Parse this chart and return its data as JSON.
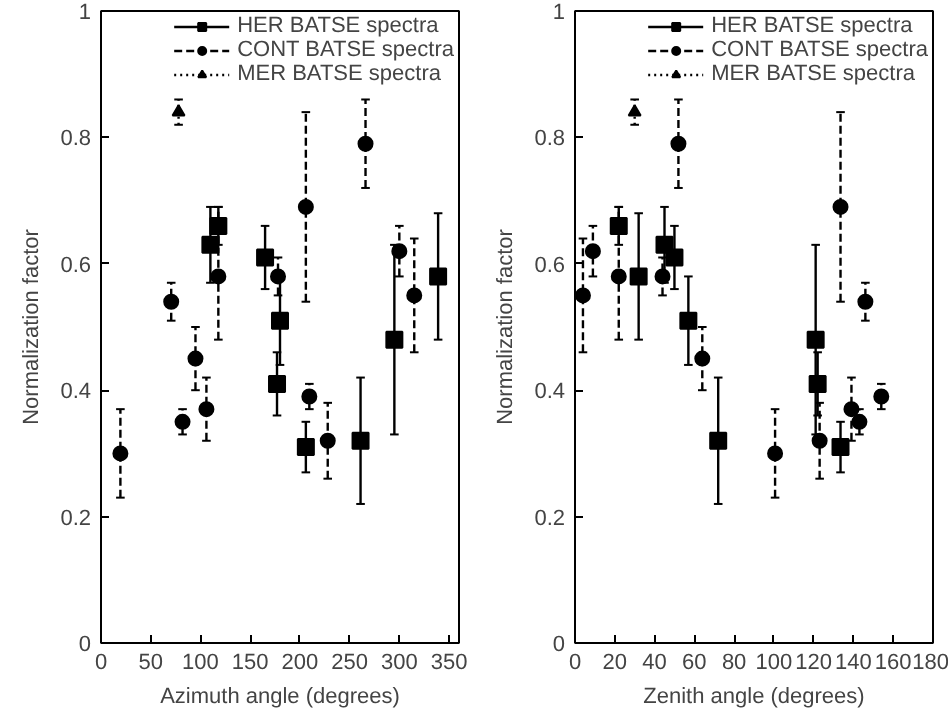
{
  "chart_data": [
    {
      "type": "scatter",
      "xlabel": "Azimuth angle (degrees)",
      "ylabel": "Normalization factor",
      "xlim": [
        0,
        360
      ],
      "xticks": [
        0,
        50,
        100,
        150,
        200,
        250,
        300,
        350
      ],
      "ylim": [
        0,
        1
      ],
      "yticks": [
        0,
        0.2,
        0.4,
        0.6,
        0.8,
        1
      ],
      "grid": false,
      "legend": "top right",
      "series": [
        {
          "name": "HER BATSE spectra",
          "color": "#000000",
          "marker": "square",
          "line_style": "solid",
          "x": [
            110,
            118,
            165,
            180,
            177,
            206,
            261,
            295,
            339
          ],
          "values": [
            0.63,
            0.66,
            0.61,
            0.51,
            0.41,
            0.31,
            0.32,
            0.48,
            0.58
          ],
          "errors": [
            [
              0.57,
              0.69
            ],
            [
              0.63,
              0.69
            ],
            [
              0.56,
              0.66
            ],
            [
              0.44,
              0.58
            ],
            [
              0.36,
              0.46
            ],
            [
              0.27,
              0.35
            ],
            [
              0.22,
              0.42
            ],
            [
              0.33,
              0.63
            ],
            [
              0.48,
              0.68
            ]
          ]
        },
        {
          "name": "CONT BATSE spectra",
          "color": "#000000",
          "marker": "circle",
          "line_style": "dashed",
          "x": [
            19.5,
            70.6,
            82,
            95,
            106,
            118,
            178,
            206,
            266,
            209.5,
            228,
            300,
            315
          ],
          "values": [
            0.3,
            0.54,
            0.35,
            0.45,
            0.37,
            0.58,
            0.58,
            0.69,
            0.79,
            0.39,
            0.32,
            0.62,
            0.55
          ],
          "errors": [
            [
              0.23,
              0.37
            ],
            [
              0.51,
              0.57
            ],
            [
              0.33,
              0.37
            ],
            [
              0.4,
              0.5
            ],
            [
              0.32,
              0.42
            ],
            [
              0.48,
              0.69
            ],
            [
              0.55,
              0.61
            ],
            [
              0.54,
              0.84
            ],
            [
              0.72,
              0.86
            ],
            [
              0.37,
              0.41
            ],
            [
              0.26,
              0.38
            ],
            [
              0.58,
              0.66
            ],
            [
              0.46,
              0.64
            ]
          ]
        },
        {
          "name": "MER BATSE spectra",
          "color": "#000000",
          "marker": "triangle",
          "line_style": "dotted",
          "x": [
            78
          ],
          "values": [
            0.84
          ],
          "errors": [
            [
              0.82,
              0.86
            ]
          ]
        }
      ]
    },
    {
      "type": "scatter",
      "xlabel": "Zenith angle (degrees)",
      "ylabel": "Normalization factor",
      "xlim": [
        0,
        180
      ],
      "xticks": [
        0,
        20,
        40,
        60,
        80,
        100,
        120,
        140,
        160,
        180
      ],
      "ylim": [
        0,
        1
      ],
      "yticks": [
        0,
        0.2,
        0.4,
        0.6,
        0.8,
        1
      ],
      "grid": false,
      "legend": "top right",
      "series": [
        {
          "name": "HER BATSE spectra",
          "color": "#000000",
          "marker": "square",
          "line_style": "solid",
          "x": [
            22,
            32,
            45,
            50,
            57,
            72,
            121,
            122,
            133.5
          ],
          "values": [
            0.66,
            0.58,
            0.63,
            0.61,
            0.51,
            0.32,
            0.48,
            0.41,
            0.31
          ],
          "errors": [
            [
              0.63,
              0.69
            ],
            [
              0.48,
              0.68
            ],
            [
              0.57,
              0.69
            ],
            [
              0.56,
              0.66
            ],
            [
              0.44,
              0.58
            ],
            [
              0.22,
              0.42
            ],
            [
              0.33,
              0.63
            ],
            [
              0.36,
              0.46
            ],
            [
              0.27,
              0.35
            ]
          ]
        },
        {
          "name": "CONT BATSE spectra",
          "color": "#000000",
          "marker": "circle",
          "line_style": "dashed",
          "x": [
            4,
            9,
            22,
            52,
            44,
            64,
            100.6,
            123,
            139,
            143,
            154,
            133.5,
            146
          ],
          "values": [
            0.55,
            0.62,
            0.58,
            0.79,
            0.58,
            0.45,
            0.3,
            0.32,
            0.37,
            0.35,
            0.39,
            0.69,
            0.54
          ],
          "errors": [
            [
              0.46,
              0.64
            ],
            [
              0.58,
              0.66
            ],
            [
              0.48,
              0.69
            ],
            [
              0.72,
              0.86
            ],
            [
              0.55,
              0.61
            ],
            [
              0.4,
              0.5
            ],
            [
              0.23,
              0.37
            ],
            [
              0.26,
              0.38
            ],
            [
              0.32,
              0.42
            ],
            [
              0.33,
              0.37
            ],
            [
              0.37,
              0.41
            ],
            [
              0.54,
              0.84
            ],
            [
              0.51,
              0.57
            ]
          ]
        },
        {
          "name": "MER BATSE spectra",
          "color": "#000000",
          "marker": "triangle",
          "line_style": "dotted",
          "x": [
            30
          ],
          "values": [
            0.84
          ],
          "errors": [
            [
              0.82,
              0.86
            ]
          ]
        }
      ]
    }
  ]
}
